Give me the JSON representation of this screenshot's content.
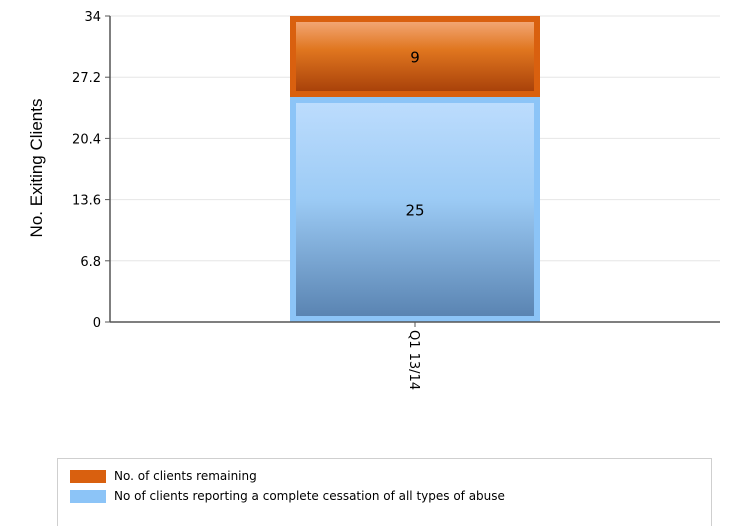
{
  "chart_data": {
    "type": "bar",
    "stacked": true,
    "categories": [
      "Q1 13/14"
    ],
    "series": [
      {
        "name": "No of clients reporting a complete cessation of all types of abuse",
        "values": [
          25
        ],
        "color": "#8cc4f7"
      },
      {
        "name": "No. of clients remaining",
        "values": [
          9
        ],
        "color": "#d9600f"
      }
    ],
    "ylabel": "No. Exiting Clients",
    "xlabel": "",
    "ylim": [
      0,
      34
    ],
    "yticks": [
      "0",
      "6.8",
      "13.6",
      "20.4",
      "27.2",
      "34"
    ],
    "grid": true,
    "legend_position": "bottom"
  },
  "legend": {
    "items": [
      {
        "label": "No. of clients remaining",
        "color": "#d9600f"
      },
      {
        "label": "No of clients reporting a complete cessation of all types of abuse",
        "color": "#8cc4f7"
      }
    ]
  }
}
